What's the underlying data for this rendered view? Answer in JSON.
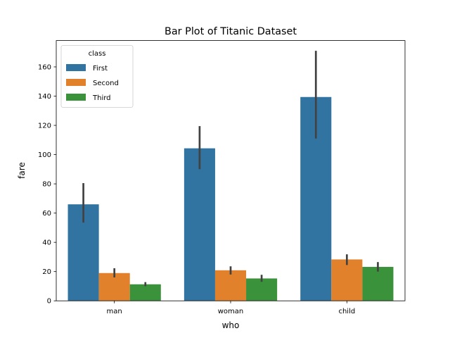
{
  "chart_data": {
    "type": "bar",
    "title": "Bar Plot of Titanic Dataset",
    "xlabel": "who",
    "ylabel": "fare",
    "categories": [
      "man",
      "woman",
      "child"
    ],
    "ylim": [
      0,
      178
    ],
    "yticks": [
      0,
      20,
      40,
      60,
      80,
      100,
      120,
      140,
      160
    ],
    "grid": false,
    "legend": {
      "title": "class",
      "placement": "top-left"
    },
    "series": [
      {
        "name": "First",
        "color": "#3274a1",
        "values": [
          66.0,
          104.3,
          139.4
        ],
        "ci_low": [
          53.5,
          90.0,
          111.0
        ],
        "ci_high": [
          80.5,
          119.5,
          171.0
        ]
      },
      {
        "name": "Second",
        "color": "#e1812c",
        "values": [
          19.0,
          20.9,
          28.3
        ],
        "ci_low": [
          16.0,
          18.0,
          24.5
        ],
        "ci_high": [
          22.3,
          23.6,
          31.8
        ]
      },
      {
        "name": "Third",
        "color": "#3a923a",
        "values": [
          11.3,
          15.3,
          23.2
        ],
        "ci_low": [
          10.0,
          13.0,
          20.0
        ],
        "ci_high": [
          12.8,
          17.8,
          26.5
        ]
      }
    ],
    "errorbar_color": "#424242"
  }
}
